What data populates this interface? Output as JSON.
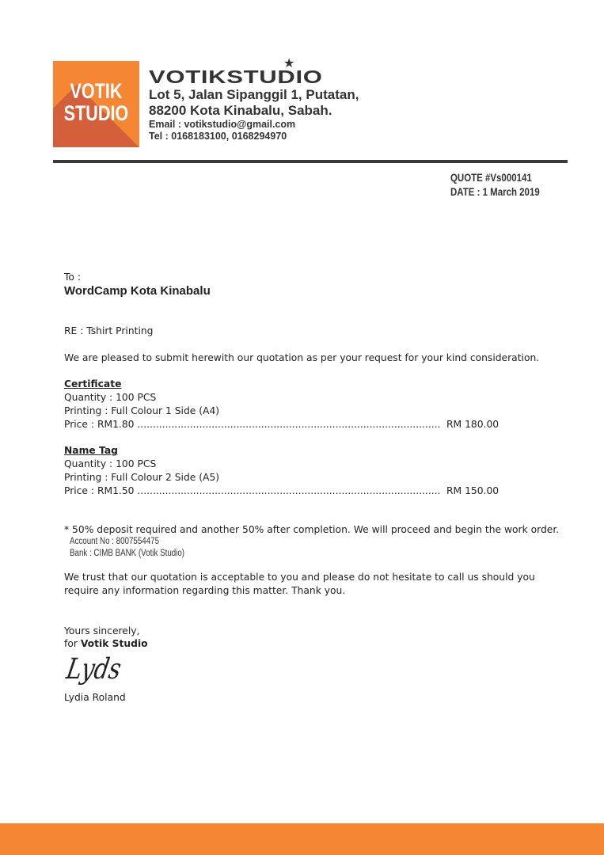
{
  "logo": {
    "line1": "VOTIK",
    "line2": "STUDIO",
    "color": "#f58634",
    "shadow_color": "#d3603a"
  },
  "header": {
    "brand": "VOTIKSTUDIO",
    "address1": "Lot 5, Jalan Sipanggil 1, Putatan,",
    "address2": "88200 Kota Kinabalu, Sabah.",
    "email": "Email : votikstudio@gmail.com",
    "tel": "Tel : 0168183100, 0168294970"
  },
  "quote": {
    "number": "QUOTE #Vs000141",
    "date": "DATE : 1 March 2019"
  },
  "recipient": {
    "label": "To :",
    "name": "WordCamp Kota Kinabalu"
  },
  "re": "RE : Tshirt Printing",
  "intro": "We are pleased to submit herewith our quotation as per your request for your kind consideration.",
  "items": [
    {
      "title": "Certificate",
      "quantity": "Quantity : 100 PCS",
      "printing": "Printing : Full Colour 1 Side (A4)",
      "price": "Price : RM1.80 ..............................................................................................................",
      "total": "RM 180.00"
    },
    {
      "title": "Name Tag",
      "quantity": "Quantity : 100 PCS",
      "printing": "Printing : Full Colour 2 Side (A5)",
      "price": "Price : RM1.50 ..............................................................................................................",
      "total": "RM 150.00"
    }
  ],
  "note": "* 50% deposit required and another 50% after completion. We will proceed and begin the work order.",
  "account": "Account No : 8007554475",
  "bank": "Bank : CIMB BANK (Votik Studio)",
  "closing1": "We trust that our quotation is acceptable to you and please do not hesitate to call us should you",
  "closing2": "require any information regarding this matter. Thank you.",
  "signoff": {
    "line1": "Yours sincerely,",
    "for": "for ",
    "company": "Votik Studio",
    "signature": "Lyds",
    "name": "Lydia Roland"
  },
  "footer_color": "#f58634"
}
